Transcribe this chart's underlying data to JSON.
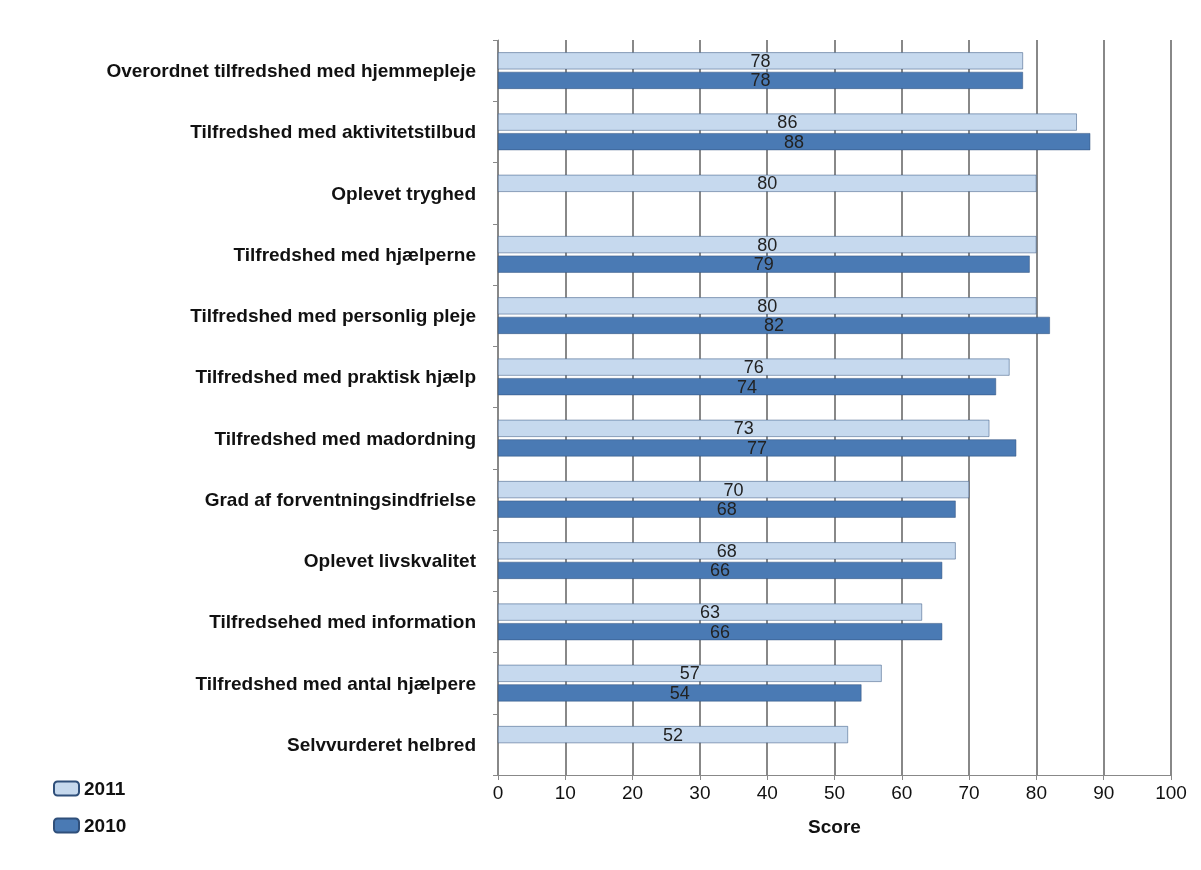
{
  "chart_data": {
    "type": "bar",
    "orientation": "horizontal",
    "xlabel": "Score",
    "categories": [
      "Overordnet tilfredshed med hjemmepleje",
      "Tilfredshed med aktivitetstilbud",
      "Oplevet tryghed",
      "Tilfredshed med hjælperne",
      "Tilfredshed med personlig pleje",
      "Tilfredshed med praktisk hjælp",
      "Tilfredshed med madordning",
      "Grad af forventningsindfrielse",
      "Oplevet livskvalitet",
      "Tilfredsehed med information",
      "Tilfredshed med antal hjælpere",
      "Selvvurderet helbred"
    ],
    "series": [
      {
        "name": "2011",
        "color": "#c6d9ee",
        "values": [
          78,
          86,
          80,
          80,
          80,
          76,
          73,
          70,
          68,
          63,
          57,
          52
        ]
      },
      {
        "name": "2010",
        "color": "#4a7ab4",
        "values": [
          78,
          88,
          null,
          79,
          82,
          74,
          77,
          68,
          66,
          66,
          54,
          null
        ]
      }
    ],
    "xlim": [
      0,
      100
    ],
    "xticks": [
      0,
      10,
      20,
      30,
      40,
      50,
      60,
      70,
      80,
      90,
      100
    ],
    "grid": "x",
    "legend": "bottom left",
    "data_labels": true
  }
}
